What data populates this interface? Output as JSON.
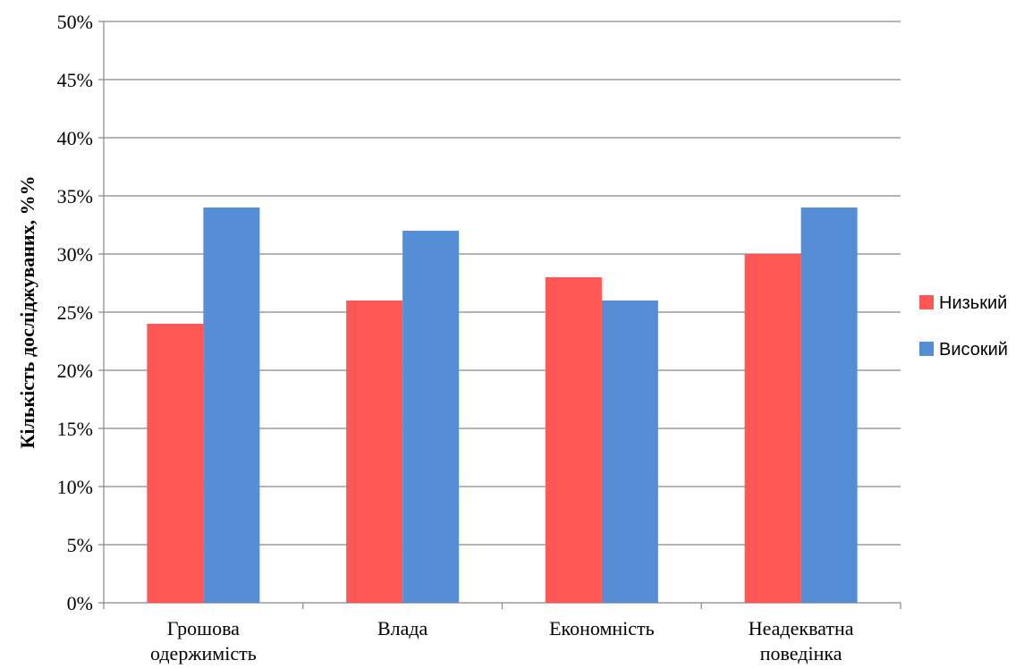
{
  "chart_data": {
    "type": "bar",
    "categories": [
      [
        "Грошова",
        "одержимість"
      ],
      [
        "Влада"
      ],
      [
        "Економність"
      ],
      [
        "Неадекватна",
        "поведінка"
      ]
    ],
    "series": [
      {
        "name": "Низький",
        "values": [
          24,
          26,
          28,
          30
        ],
        "color": "#FF5656"
      },
      {
        "name": "Високий",
        "values": [
          34,
          32,
          26,
          34
        ],
        "color": "#558ED5"
      }
    ],
    "ylabel": "Кількість досліджуваних, %%",
    "ylim": [
      0,
      50
    ],
    "yticks": [
      0,
      5,
      10,
      15,
      20,
      25,
      30,
      35,
      40,
      45,
      50
    ],
    "ytick_suffix": "%",
    "grid": true,
    "legend_position": "right",
    "gridline_color": "#868686",
    "axis_color": "#868686"
  }
}
